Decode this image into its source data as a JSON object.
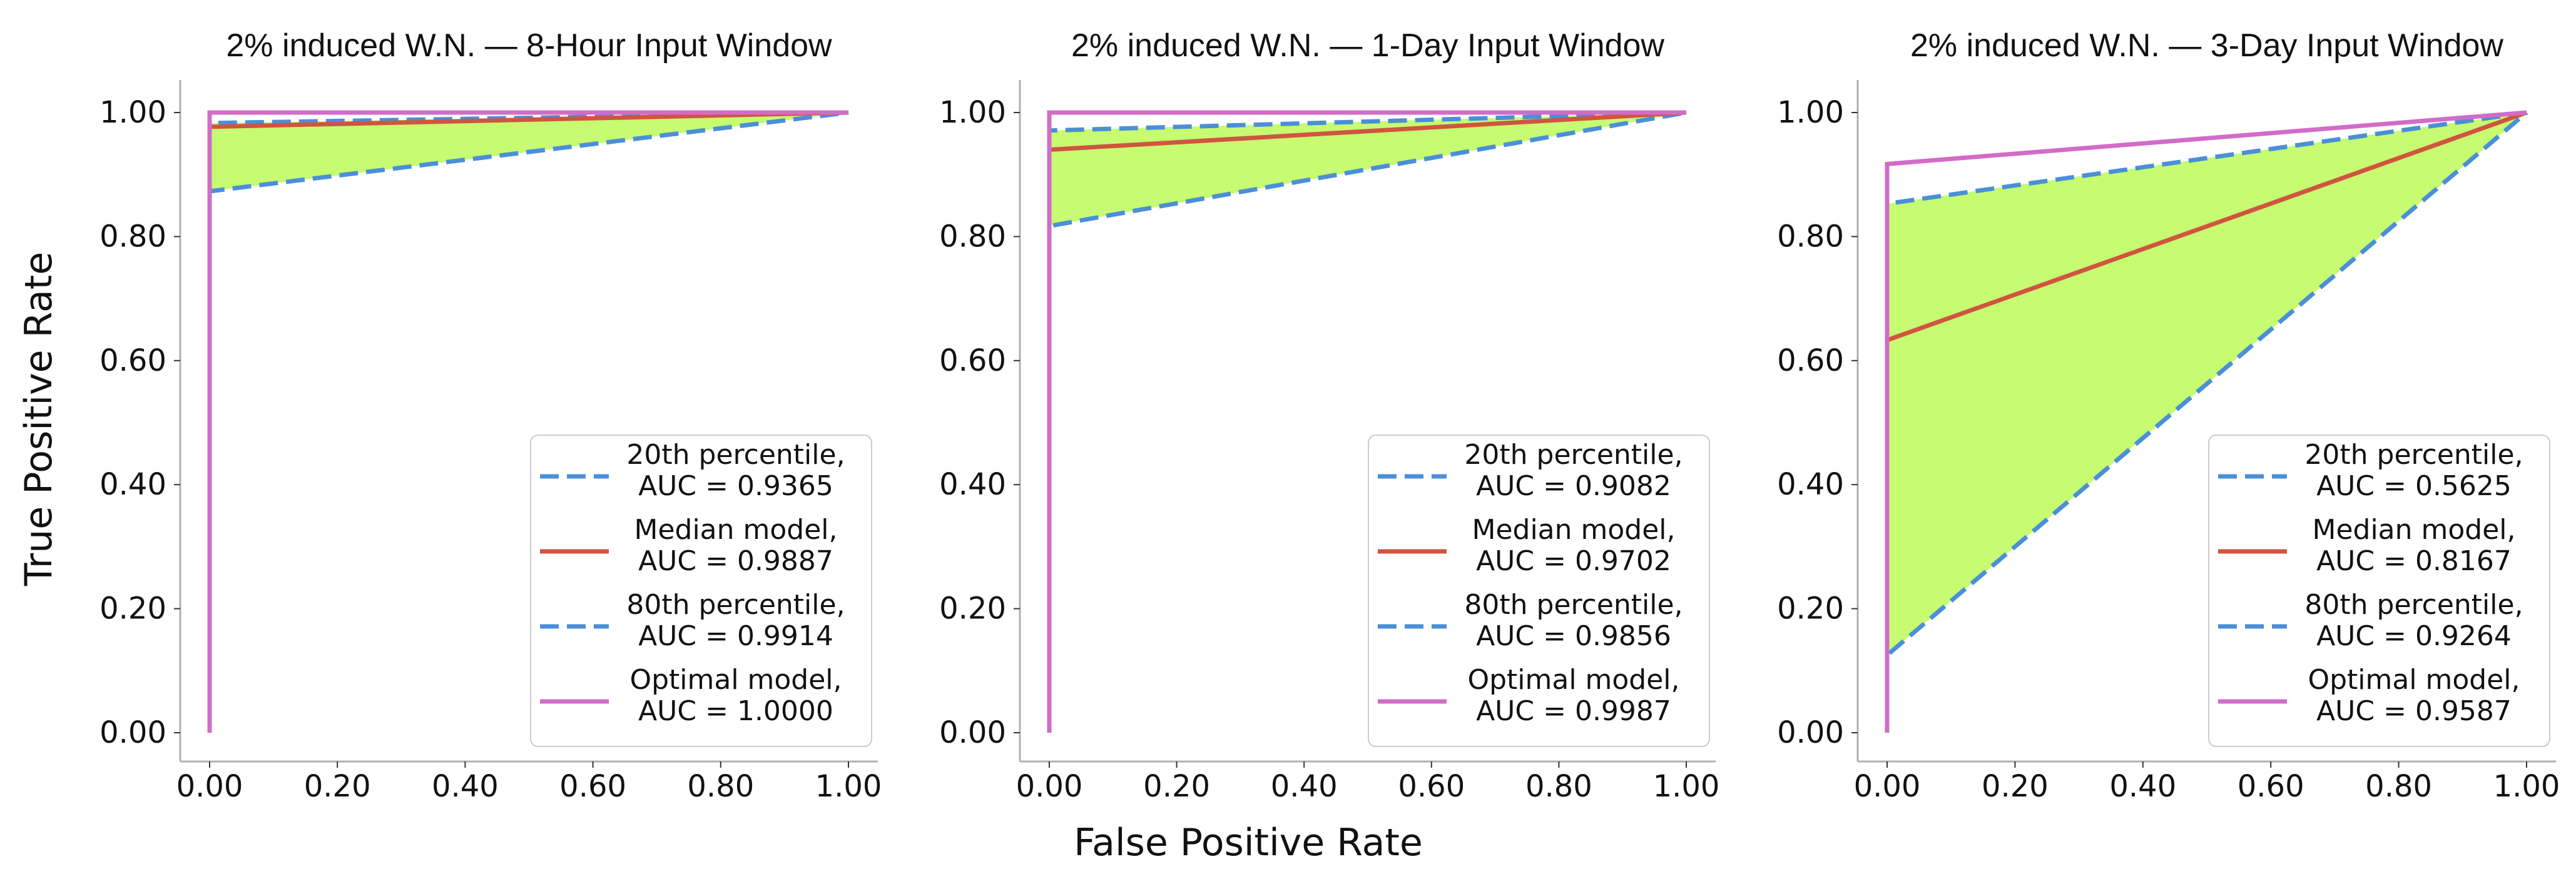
{
  "figure": {
    "xlabel": "False Positive Rate",
    "ylabel": "True Positive Rate"
  },
  "colors": {
    "fill": "#c6fb72",
    "percentile": "#4a8fd8",
    "median": "#d0553f",
    "optimal": "#d26cc7",
    "axis": "#b0b0b0"
  },
  "chart_data": [
    {
      "type": "line",
      "title": "2% induced W.N. — 8-Hour Input Window",
      "xlim": [
        0,
        1
      ],
      "ylim": [
        0,
        1
      ],
      "xticks": [
        "0.00",
        "0.20",
        "0.40",
        "0.60",
        "0.80",
        "1.00"
      ],
      "yticks": [
        "0.00",
        "0.20",
        "0.40",
        "0.60",
        "0.80",
        "1.00"
      ],
      "shaded_between": [
        "20th percentile",
        "80th percentile"
      ],
      "series": [
        {
          "name": "20th percentile",
          "legend": [
            "20th percentile,",
            "AUC = 0.9365"
          ],
          "style": "dashed",
          "color_key": "percentile",
          "points": [
            [
              0,
              0
            ],
            [
              0,
              0.873
            ],
            [
              1,
              1
            ]
          ]
        },
        {
          "name": "Median model",
          "legend": [
            "Median model,",
            "AUC = 0.9887"
          ],
          "style": "solid",
          "color_key": "median",
          "points": [
            [
              0,
              0
            ],
            [
              0,
              0.977
            ],
            [
              1,
              1
            ]
          ]
        },
        {
          "name": "80th percentile",
          "legend": [
            "80th percentile,",
            "AUC = 0.9914"
          ],
          "style": "dashed",
          "color_key": "percentile",
          "points": [
            [
              0,
              0
            ],
            [
              0,
              0.983
            ],
            [
              1,
              1
            ]
          ]
        },
        {
          "name": "Optimal model",
          "legend": [
            "Optimal model,",
            "AUC = 1.0000"
          ],
          "style": "solid",
          "color_key": "optimal",
          "points": [
            [
              0,
              0
            ],
            [
              0,
              1.0
            ],
            [
              1,
              1
            ]
          ]
        }
      ]
    },
    {
      "type": "line",
      "title": "2% induced W.N. — 1-Day Input Window",
      "xlim": [
        0,
        1
      ],
      "ylim": [
        0,
        1
      ],
      "xticks": [
        "0.00",
        "0.20",
        "0.40",
        "0.60",
        "0.80",
        "1.00"
      ],
      "yticks": [
        "0.00",
        "0.20",
        "0.40",
        "0.60",
        "0.80",
        "1.00"
      ],
      "shaded_between": [
        "20th percentile",
        "80th percentile"
      ],
      "series": [
        {
          "name": "20th percentile",
          "legend": [
            "20th percentile,",
            "AUC = 0.9082"
          ],
          "style": "dashed",
          "color_key": "percentile",
          "points": [
            [
              0,
              0
            ],
            [
              0,
              0.817
            ],
            [
              1,
              1
            ]
          ]
        },
        {
          "name": "Median model",
          "legend": [
            "Median model,",
            "AUC = 0.9702"
          ],
          "style": "solid",
          "color_key": "median",
          "points": [
            [
              0,
              0
            ],
            [
              0,
              0.94
            ],
            [
              1,
              1
            ]
          ]
        },
        {
          "name": "80th percentile",
          "legend": [
            "80th percentile,",
            "AUC = 0.9856"
          ],
          "style": "dashed",
          "color_key": "percentile",
          "points": [
            [
              0,
              0
            ],
            [
              0,
              0.971
            ],
            [
              1,
              1
            ]
          ]
        },
        {
          "name": "Optimal model",
          "legend": [
            "Optimal model,",
            "AUC = 0.9987"
          ],
          "style": "solid",
          "color_key": "optimal",
          "points": [
            [
              0,
              0
            ],
            [
              0,
              1.0
            ],
            [
              1,
              1
            ]
          ]
        }
      ]
    },
    {
      "type": "line",
      "title": "2% induced W.N. — 3-Day Input Window",
      "xlim": [
        0,
        1
      ],
      "ylim": [
        0,
        1
      ],
      "xticks": [
        "0.00",
        "0.20",
        "0.40",
        "0.60",
        "0.80",
        "1.00"
      ],
      "yticks": [
        "0.00",
        "0.20",
        "0.40",
        "0.60",
        "0.80",
        "1.00"
      ],
      "shaded_between": [
        "20th percentile",
        "80th percentile"
      ],
      "series": [
        {
          "name": "20th percentile",
          "legend": [
            "20th percentile,",
            "AUC = 0.5625"
          ],
          "style": "dashed",
          "color_key": "percentile",
          "points": [
            [
              0,
              0
            ],
            [
              0,
              0.125
            ],
            [
              1,
              1
            ]
          ]
        },
        {
          "name": "Median model",
          "legend": [
            "Median model,",
            "AUC = 0.8167"
          ],
          "style": "solid",
          "color_key": "median",
          "points": [
            [
              0,
              0
            ],
            [
              0,
              0.633
            ],
            [
              1,
              1
            ]
          ]
        },
        {
          "name": "80th percentile",
          "legend": [
            "80th percentile,",
            "AUC = 0.9264"
          ],
          "style": "dashed",
          "color_key": "percentile",
          "points": [
            [
              0,
              0
            ],
            [
              0,
              0.853
            ],
            [
              1,
              1
            ]
          ]
        },
        {
          "name": "Optimal model",
          "legend": [
            "Optimal model,",
            "AUC = 0.9587"
          ],
          "style": "solid",
          "color_key": "optimal",
          "points": [
            [
              0,
              0
            ],
            [
              0,
              0.917
            ],
            [
              1,
              1
            ]
          ]
        }
      ]
    }
  ]
}
